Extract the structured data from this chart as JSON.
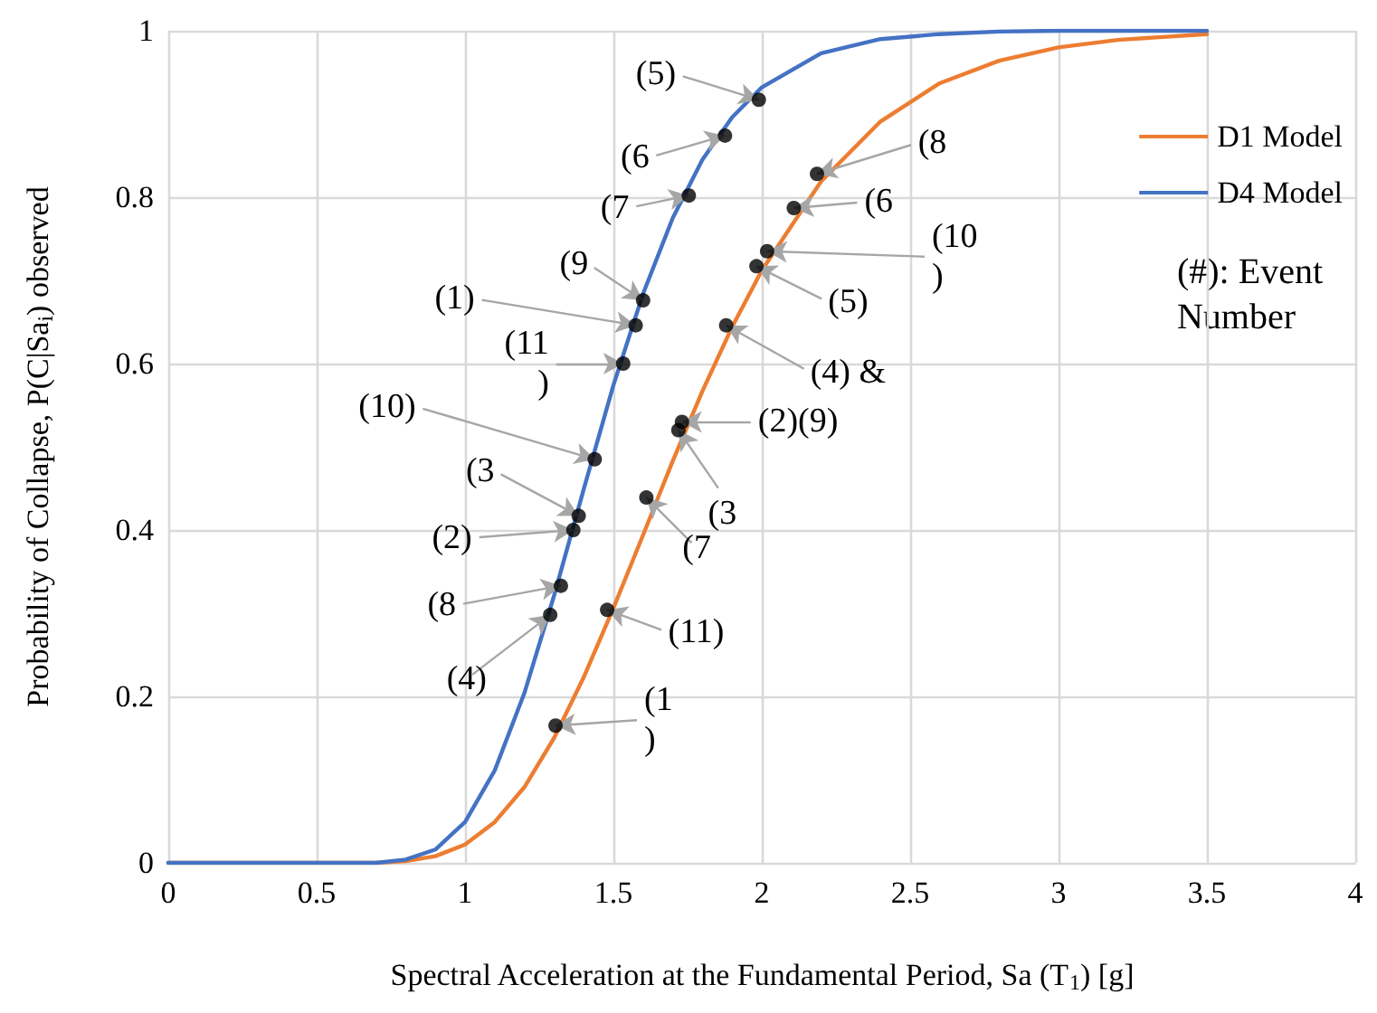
{
  "chart_data": {
    "type": "line",
    "xlabel": "Spectral Acceleration at the Fundamental Period, Sa (T$_{1}$) [g]",
    "ylabel": "Probability of Collapse, P(C|Sa$_{i}$) observed",
    "xlim": [
      0,
      4
    ],
    "xticks": [
      0,
      0.5,
      1,
      1.5,
      2,
      2.5,
      3,
      3.5,
      4
    ],
    "ylim": [
      0,
      1
    ],
    "yticks": [
      0,
      0.2,
      0.4,
      0.6,
      0.8,
      1
    ],
    "grid": true,
    "legend": "right",
    "marker": "none",
    "line_style": "solid",
    "series": [
      {
        "name": "D1 Model",
        "color": "#ed7d31",
        "x": [
          0,
          0.5,
          0.7,
          0.8,
          0.9,
          1.0,
          1.1,
          1.2,
          1.3,
          1.4,
          1.5,
          1.6,
          1.7,
          1.8,
          1.9,
          2.0,
          2.2,
          2.4,
          2.6,
          2.8,
          3.0,
          3.2,
          3.5
        ],
        "values": [
          0,
          0,
          0,
          0.002,
          0.008,
          0.022,
          0.049,
          0.091,
          0.15,
          0.223,
          0.306,
          0.394,
          0.483,
          0.567,
          0.644,
          0.712,
          0.819,
          0.891,
          0.937,
          0.964,
          0.98,
          0.989,
          0.996
        ]
      },
      {
        "name": "D4 Model",
        "color": "#4472c4",
        "x": [
          0,
          0.5,
          0.7,
          0.8,
          0.9,
          1.0,
          1.1,
          1.2,
          1.3,
          1.4,
          1.5,
          1.6,
          1.7,
          1.8,
          1.9,
          2.0,
          2.2,
          2.4,
          2.6,
          2.8,
          3.0,
          3.5
        ],
        "values": [
          0,
          0,
          0,
          0.004,
          0.016,
          0.049,
          0.111,
          0.204,
          0.321,
          0.449,
          0.574,
          0.684,
          0.775,
          0.845,
          0.896,
          0.932,
          0.973,
          0.99,
          0.996,
          0.999,
          1.0,
          1.0
        ]
      },
      {
        "type": "scatter",
        "color": "#000000",
        "marker": "circle",
        "x": [
          1.99,
          1.876,
          1.754,
          1.6,
          1.575,
          1.533,
          1.437,
          1.383,
          1.365,
          1.323,
          1.287,
          2.186,
          2.108,
          2.018,
          1.982,
          1.88,
          1.731,
          1.719,
          1.611,
          1.479,
          1.305
        ],
        "values": [
          0.917,
          0.874,
          0.802,
          0.676,
          0.646,
          0.6,
          0.485,
          0.417,
          0.4,
          0.333,
          0.298,
          0.828,
          0.787,
          0.735,
          0.717,
          0.646,
          0.53,
          0.52,
          0.439,
          0.304,
          0.165
        ]
      }
    ],
    "annotations": [
      {
        "text": "(5)",
        "x": 1.99,
        "y": 0.917
      },
      {
        "text": "(6",
        "x": 1.876,
        "y": 0.874
      },
      {
        "text": "(7",
        "x": 1.754,
        "y": 0.802
      },
      {
        "text": "(9",
        "x": 1.6,
        "y": 0.676
      },
      {
        "text": "(1)",
        "x": 1.575,
        "y": 0.646
      },
      {
        "text": "(11\n)",
        "x": 1.533,
        "y": 0.6
      },
      {
        "text": "(10)",
        "x": 1.437,
        "y": 0.485
      },
      {
        "text": "(3",
        "x": 1.383,
        "y": 0.417
      },
      {
        "text": "(2)",
        "x": 1.365,
        "y": 0.4
      },
      {
        "text": "(8",
        "x": 1.323,
        "y": 0.333
      },
      {
        "text": "(4)",
        "x": 1.287,
        "y": 0.298
      },
      {
        "text": "(8",
        "x": 2.186,
        "y": 0.828
      },
      {
        "text": "(6",
        "x": 2.108,
        "y": 0.787
      },
      {
        "text": "(10\n)",
        "x": 2.018,
        "y": 0.735
      },
      {
        "text": "(5)",
        "x": 1.982,
        "y": 0.717
      },
      {
        "text": "(4) &",
        "x": 1.88,
        "y": 0.646
      },
      {
        "text": "(2)(9)",
        "x": 1.731,
        "y": 0.53
      },
      {
        "text": "(3",
        "x": 1.719,
        "y": 0.52
      },
      {
        "text": "(7",
        "x": 1.611,
        "y": 0.439
      },
      {
        "text": "(11)",
        "x": 1.479,
        "y": 0.304
      },
      {
        "text": "(1\n)",
        "x": 1.305,
        "y": 0.165
      },
      "(#): Event\nNumber"
    ]
  }
}
